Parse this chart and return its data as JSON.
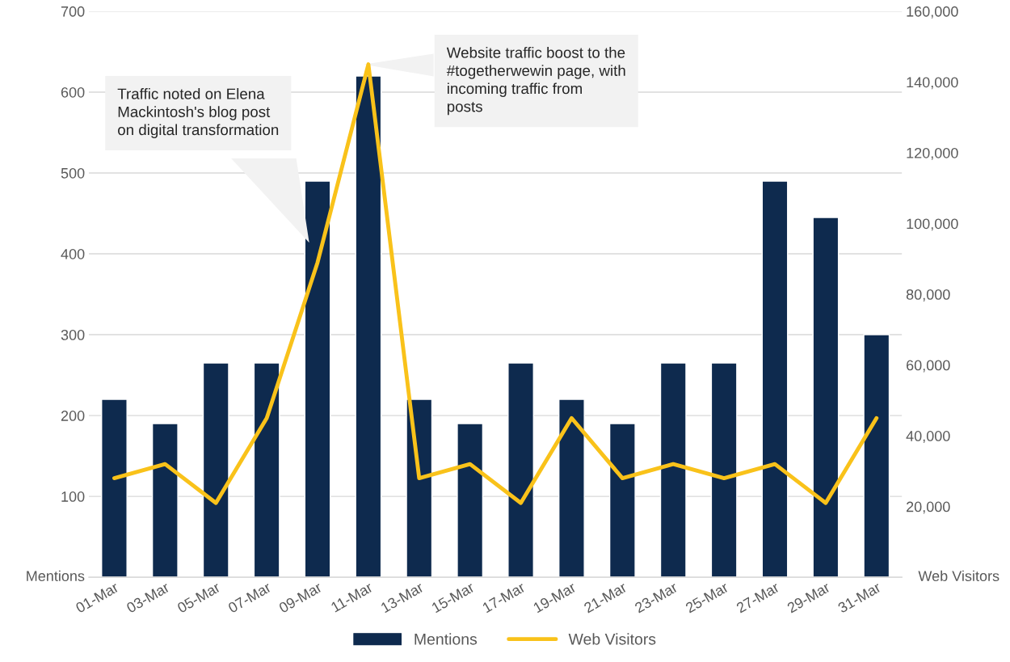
{
  "chart_data": {
    "type": "bar",
    "categories": [
      "01-Mar",
      "03-Mar",
      "05-Mar",
      "07-Mar",
      "09-Mar",
      "11-Mar",
      "13-Mar",
      "15-Mar",
      "17-Mar",
      "19-Mar",
      "21-Mar",
      "23-Mar",
      "25-Mar",
      "27-Mar",
      "29-Mar",
      "31-Mar"
    ],
    "series": [
      {
        "name": "Mentions",
        "color": "#0e2a4e",
        "values": [
          220,
          190,
          265,
          265,
          490,
          620,
          220,
          190,
          265,
          220,
          190,
          265,
          265,
          490,
          445,
          300
        ]
      },
      {
        "name": "Web Visitors",
        "type": "line",
        "axis": "y2",
        "color": "#f9c21a",
        "values": [
          28000,
          32000,
          21000,
          45000,
          89000,
          145000,
          28000,
          32000,
          21000,
          45000,
          28000,
          32000,
          28000,
          32000,
          21000,
          45000
        ]
      }
    ],
    "ylabel": "Mentions",
    "y2label": "Web Visitors",
    "ylim": [
      0,
      700
    ],
    "yticks": [
      100,
      200,
      300,
      400,
      500,
      600,
      700
    ],
    "y2lim": [
      0,
      160000
    ],
    "y2ticks": [
      {
        "value": 20000,
        "label": "20,000"
      },
      {
        "value": 40000,
        "label": "40,000"
      },
      {
        "value": 60000,
        "label": "60,000"
      },
      {
        "value": 80000,
        "label": "80,000"
      },
      {
        "value": 100000,
        "label": "100,000"
      },
      {
        "value": 120000,
        "label": "120,000"
      },
      {
        "value": 140000,
        "label": "140,000"
      },
      {
        "value": 160000,
        "label": "160,000"
      }
    ],
    "grid": "y",
    "legend": "bottom",
    "marker": "none",
    "line_style": "solid",
    "annotations": [
      "Traffic noted on Elena\nMackintosh's blog post\non digital transformation",
      "Website traffic boost to the\n#togetherwewin page, with\nincoming traffic from\nposts"
    ]
  }
}
